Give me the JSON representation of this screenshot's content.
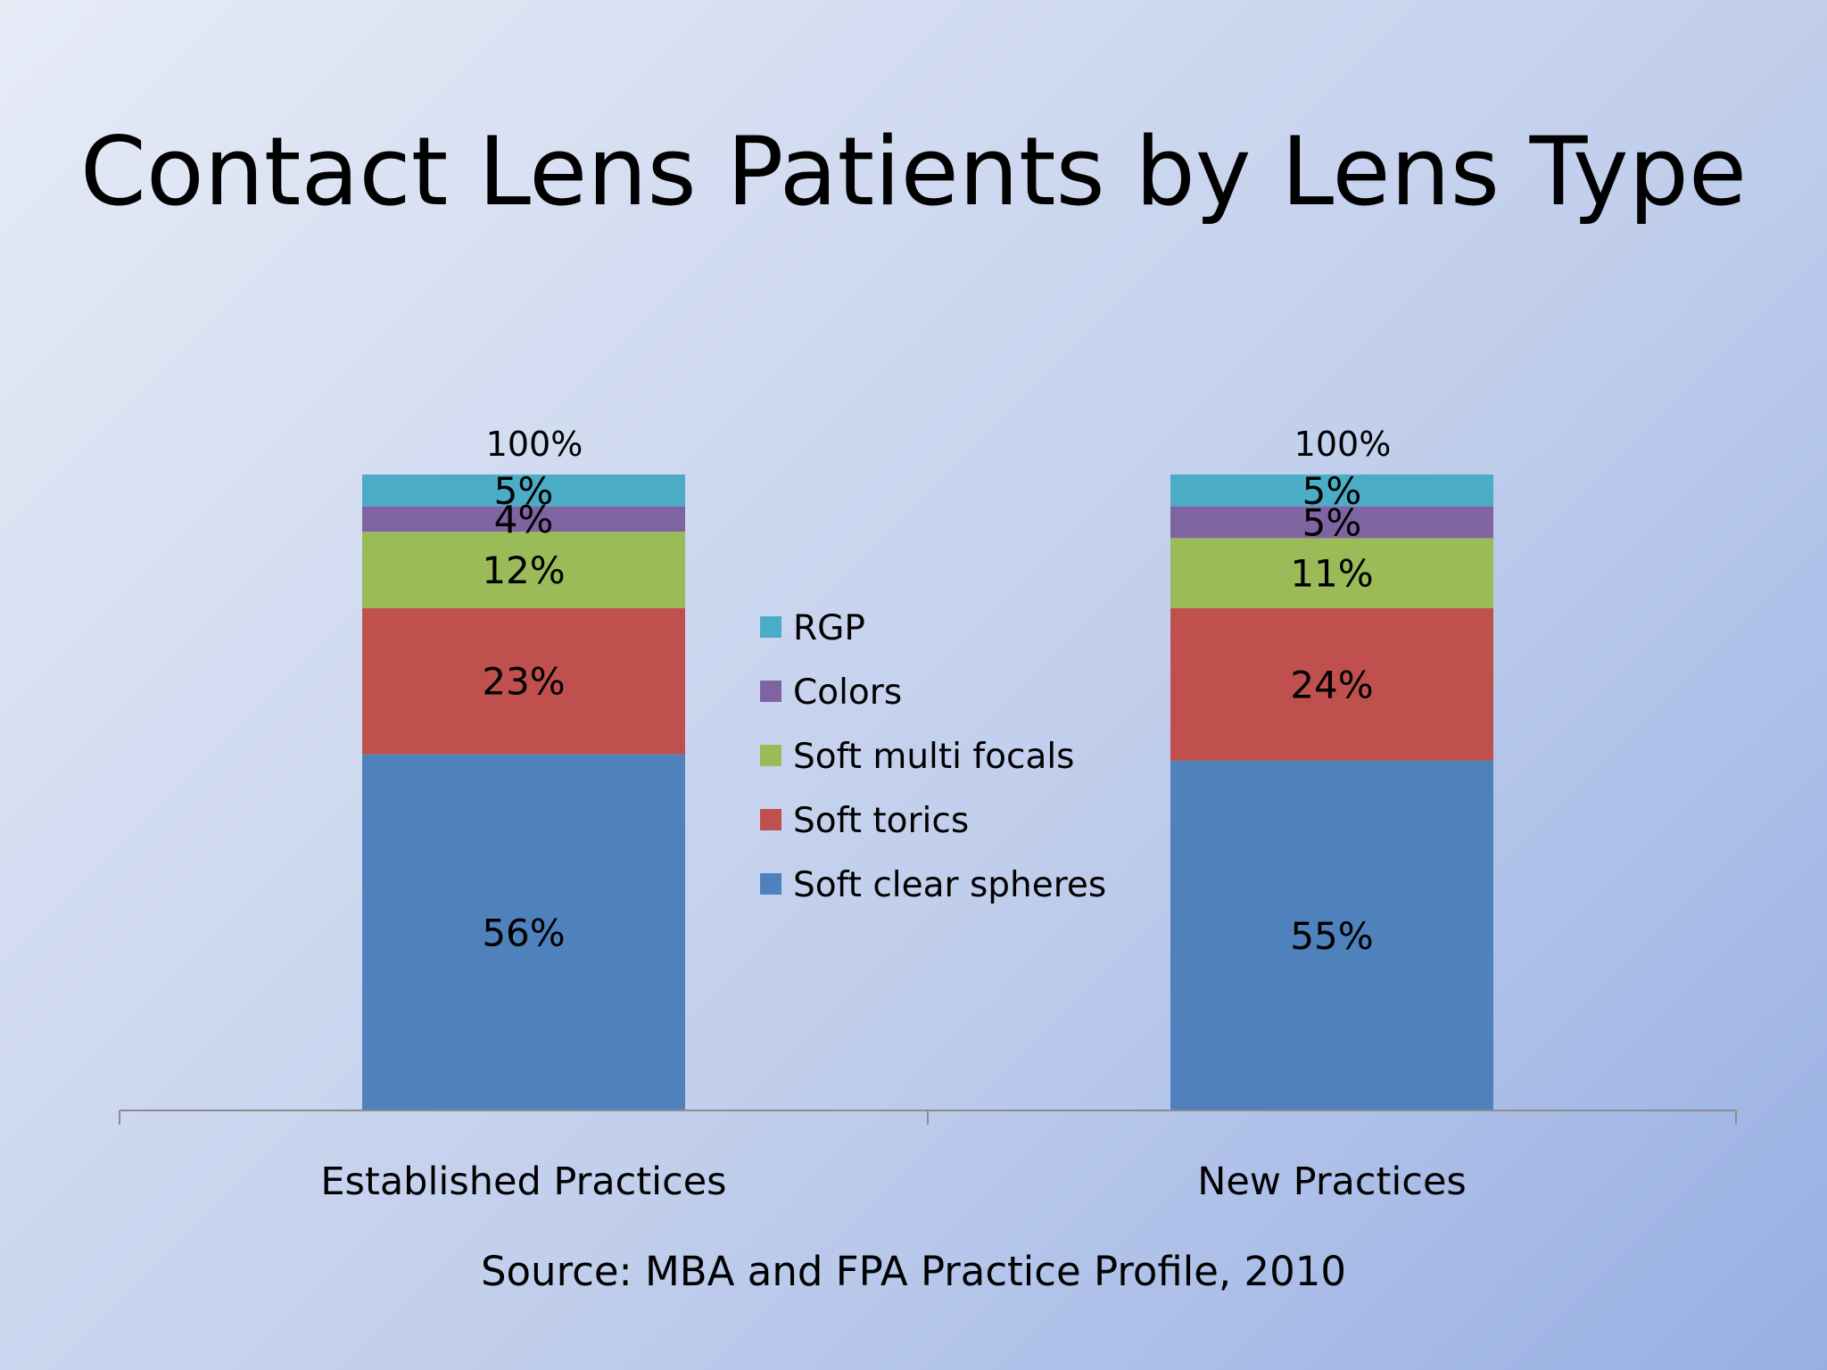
{
  "slide": {
    "title": "Contact Lens Patients by Lens Type",
    "source": "Source: MBA and FPA Practice Profile, 2010"
  },
  "chart_data": {
    "type": "bar",
    "stacked": true,
    "categories": [
      "Established Practices",
      "New Practices"
    ],
    "totals": [
      "100%",
      "100%"
    ],
    "series": [
      {
        "name": "Soft clear spheres",
        "values": [
          56,
          55
        ],
        "labels": [
          "56%",
          "55%"
        ],
        "color": "#4f81bd"
      },
      {
        "name": "Soft torics",
        "values": [
          23,
          24
        ],
        "labels": [
          "23%",
          "24%"
        ],
        "color": "#c0504d"
      },
      {
        "name": "Soft multi focals",
        "values": [
          12,
          11
        ],
        "labels": [
          "12%",
          "11%"
        ],
        "color": "#9bbb59"
      },
      {
        "name": "Colors",
        "values": [
          4,
          5
        ],
        "labels": [
          "4%",
          "5%"
        ],
        "color": "#8064a2"
      },
      {
        "name": "RGP",
        "values": [
          5,
          5
        ],
        "labels": [
          "5%",
          "5%"
        ],
        "color": "#4bacc6"
      }
    ],
    "legend_order": [
      "RGP",
      "Colors",
      "Soft multi focals",
      "Soft torics",
      "Soft clear spheres"
    ],
    "legend_position": "center",
    "ylim": [
      0,
      100
    ],
    "grid": false,
    "axis_color": "#8c8c8c"
  }
}
